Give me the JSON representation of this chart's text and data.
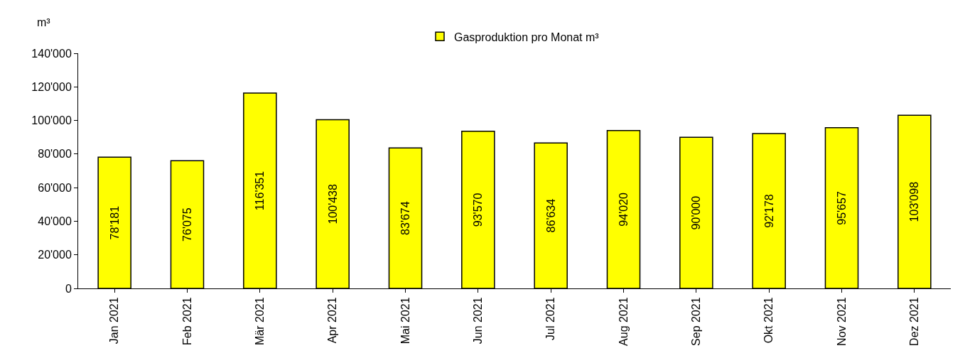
{
  "chart_data": {
    "type": "bar",
    "ylabel": "m³",
    "categories": [
      "Jan 2021",
      "Feb 2021",
      "Mär 2021",
      "Apr 2021",
      "Mai 2021",
      "Jun 2021",
      "Jul 2021",
      "Aug 2021",
      "Sep 2021",
      "Okt 2021",
      "Nov 2021",
      "Dez 2021"
    ],
    "series": [
      {
        "name": "Gasproduktion pro Monat m³",
        "color": "#ffff00",
        "values": [
          78181,
          76075,
          116351,
          100438,
          83674,
          93570,
          86634,
          94020,
          90000,
          92178,
          95657,
          103098
        ],
        "value_labels": [
          "78'181",
          "76'075",
          "116'351",
          "100'438",
          "83'674",
          "93'570",
          "86'634",
          "94'020",
          "90'000",
          "92'178",
          "95'657",
          "103'098"
        ]
      }
    ],
    "ylim": [
      0,
      140000
    ],
    "yticks": [
      0,
      {
        "value": 20000,
        "label": "20'000"
      },
      {
        "value": 40000,
        "label": "40'000"
      },
      {
        "value": 60000,
        "label": "60'000"
      },
      {
        "value": 80000,
        "label": "80'000"
      },
      {
        "value": 100000,
        "label": "100'000"
      },
      {
        "value": 120000,
        "label": "120'000"
      },
      {
        "value": 140000,
        "label": "140'000"
      }
    ],
    "grid": false,
    "legend": "top"
  }
}
